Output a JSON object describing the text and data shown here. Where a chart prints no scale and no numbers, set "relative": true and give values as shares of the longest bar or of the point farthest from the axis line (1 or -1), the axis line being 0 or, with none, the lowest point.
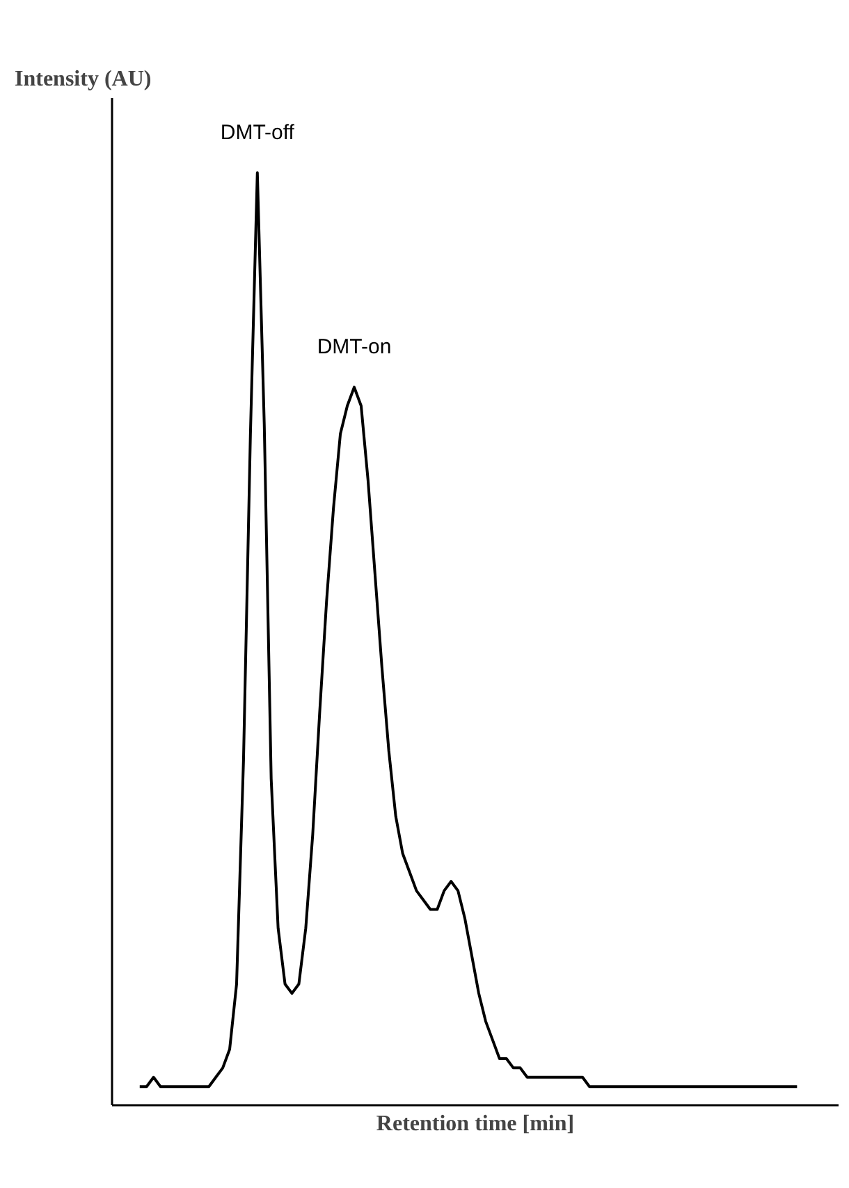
{
  "chart_data": {
    "type": "line",
    "relative": true,
    "ylabel": "Intensity (AU)",
    "xlabel": "Retention time [min]",
    "annotations": [
      "DMT-off",
      "DMT-on"
    ],
    "marker": "none",
    "line_style": "solid",
    "categories": [
      null,
      null,
      null,
      null,
      null,
      null,
      null,
      null,
      null,
      null,
      null,
      null,
      null,
      null,
      null,
      null,
      null,
      null,
      null,
      null,
      null,
      null,
      null,
      null,
      null,
      null,
      null,
      null,
      null,
      null,
      null,
      null,
      null,
      null,
      null,
      null,
      null,
      null,
      null,
      null,
      null,
      null,
      null,
      null,
      null,
      null,
      null,
      null,
      null,
      null,
      null,
      null,
      null,
      null,
      null,
      null,
      null,
      null,
      null,
      null,
      null,
      null,
      null,
      null,
      null,
      null,
      null,
      null,
      null,
      null,
      null,
      null,
      null,
      null,
      null,
      null,
      null,
      null,
      null,
      null,
      null,
      null,
      null,
      null,
      null,
      null,
      null,
      null,
      null,
      null,
      null,
      null,
      null,
      null,
      null,
      null
    ],
    "series": [
      {
        "color": "#000000",
        "values": [
          0.02,
          0.02,
          0.03,
          0.02,
          0.02,
          0.02,
          0.02,
          0.02,
          0.02,
          0.02,
          0.02,
          0.03,
          0.04,
          0.06,
          0.13,
          0.37,
          0.72,
          1.0,
          0.73,
          0.35,
          0.19,
          0.13,
          0.12,
          0.13,
          0.19,
          0.29,
          0.42,
          0.54,
          0.64,
          0.72,
          0.75,
          0.77,
          0.75,
          0.67,
          0.57,
          0.47,
          0.38,
          0.31,
          0.27,
          0.25,
          0.23,
          0.22,
          0.21,
          0.21,
          0.23,
          0.24,
          0.23,
          0.2,
          0.16,
          0.12,
          0.09,
          0.07,
          0.05,
          0.05,
          0.04,
          0.04,
          0.03,
          0.03,
          0.03,
          0.03,
          0.03,
          0.03,
          0.03,
          0.03,
          0.03,
          0.02,
          0.02,
          0.02,
          0.02,
          0.02,
          0.02,
          0.02,
          0.02,
          0.02,
          0.02,
          0.02,
          0.02,
          0.02,
          0.02,
          0.02,
          0.02,
          0.02,
          0.02,
          0.02,
          0.02,
          0.02,
          0.02,
          0.02,
          0.02,
          0.02,
          0.02,
          0.02,
          0.02,
          0.02,
          0.02,
          0.02
        ]
      }
    ]
  }
}
